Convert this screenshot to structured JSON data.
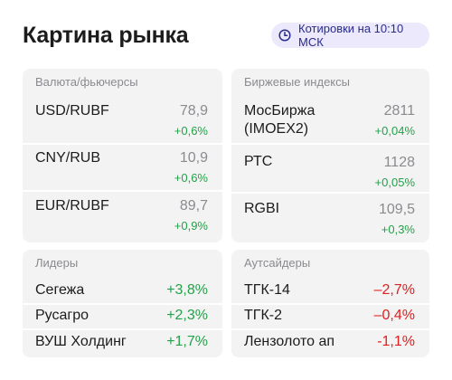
{
  "header": {
    "title": "Картина рынка",
    "quotes_badge": "Котировки на 10:10 МСК"
  },
  "currency": {
    "heading": "Валюта/фьючерсы",
    "rows": [
      {
        "name": "USD/RUBF",
        "price": "78,9",
        "change": "+0,6%"
      },
      {
        "name": "CNY/RUB",
        "price": "10,9",
        "change": "+0,6%"
      },
      {
        "name": "EUR/RUBF",
        "price": "89,7",
        "change": "+0,9%"
      }
    ]
  },
  "indices": {
    "heading": "Биржевые индексы",
    "rows": [
      {
        "name": "МосБиржа\n(IMOEX2)",
        "price": "2811",
        "change": "+0,04%"
      },
      {
        "name": "РТС",
        "price": "1128",
        "change": "+0,05%"
      },
      {
        "name": "RGBI",
        "price": "109,5",
        "change": "+0,3%"
      }
    ]
  },
  "leaders": {
    "heading": "Лидеры",
    "rows": [
      {
        "name": "Сегежа",
        "change": "+3,8%"
      },
      {
        "name": "Русагро",
        "change": "+2,3%"
      },
      {
        "name": "ВУШ Холдинг",
        "change": "+1,7%"
      }
    ]
  },
  "outsiders": {
    "heading": "Аутсайдеры",
    "rows": [
      {
        "name": "ТГК-14",
        "change": "–2,7%"
      },
      {
        "name": "ТГК-2",
        "change": "–0,4%"
      },
      {
        "name": "Лензолото ап",
        "change": "-1,1%"
      }
    ]
  },
  "colors": {
    "positive": "#24a148",
    "negative": "#e02020",
    "badge_bg": "#ebe9fb",
    "badge_text": "#2b2b8c",
    "panel_bg": "#f3f3f4"
  },
  "icons": {
    "badge_icon": "clock-icon"
  }
}
